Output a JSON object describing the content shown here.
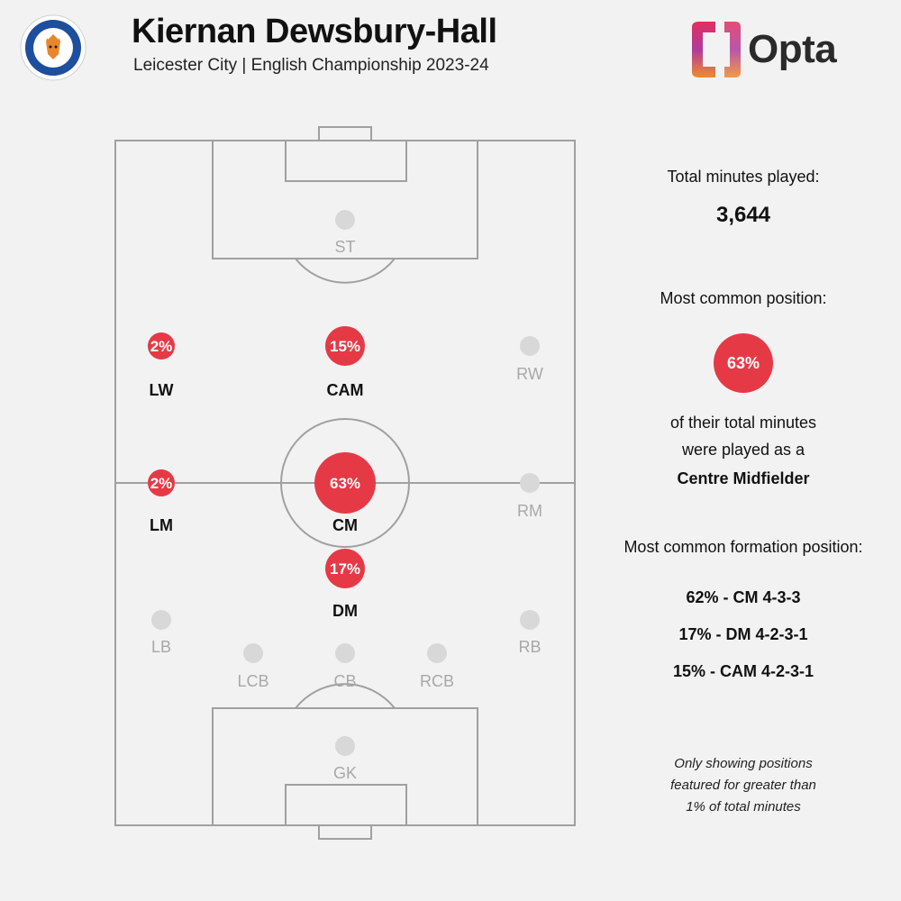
{
  "header": {
    "title": "Kiernan Dewsbury-Hall",
    "subtitle": "Leicester City | English Championship 2023-24",
    "badge_icon": "leicester-city-crest-icon",
    "brand_logo_text": "Opta",
    "brand_logo_icon": "opta-bracket-logo-icon"
  },
  "colors": {
    "accent_red": "#e63946",
    "inactive_grey": "#d8d8d8",
    "inactive_label": "#a8a8a8",
    "pitch_lines": "#a0a0a0"
  },
  "positions": [
    {
      "label": "ST",
      "pct": null,
      "active": false
    },
    {
      "label": "LW",
      "pct": "2%",
      "active": true
    },
    {
      "label": "CAM",
      "pct": "15%",
      "active": true
    },
    {
      "label": "RW",
      "pct": null,
      "active": false
    },
    {
      "label": "LM",
      "pct": "2%",
      "active": true
    },
    {
      "label": "CM",
      "pct": "63%",
      "active": true
    },
    {
      "label": "RM",
      "pct": null,
      "active": false
    },
    {
      "label": "DM",
      "pct": "17%",
      "active": true
    },
    {
      "label": "LB",
      "pct": null,
      "active": false
    },
    {
      "label": "RB",
      "pct": null,
      "active": false
    },
    {
      "label": "LCB",
      "pct": null,
      "active": false
    },
    {
      "label": "CB",
      "pct": null,
      "active": false
    },
    {
      "label": "RCB",
      "pct": null,
      "active": false
    },
    {
      "label": "GK",
      "pct": null,
      "active": false
    }
  ],
  "panel": {
    "total_minutes_label": "Total minutes played:",
    "total_minutes_value": "3,644",
    "most_common_label": "Most common position:",
    "most_common_pct": "63%",
    "desc_line1": "of their total minutes",
    "desc_line2": "were played as a",
    "position_name": "Centre Midfielder",
    "formation_label": "Most common formation position:",
    "formations": [
      "62% - CM 4-3-3",
      "17% - DM 4-2-3-1",
      "15% - CAM 4-2-3-1"
    ],
    "note_line1": "Only showing positions",
    "note_line2": "featured for greater than",
    "note_line3": "1% of total minutes"
  }
}
